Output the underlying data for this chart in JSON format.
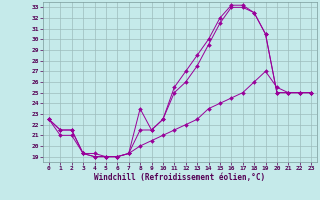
{
  "xlabel": "Windchill (Refroidissement éolien,°C)",
  "background_color": "#c5eaea",
  "line_color": "#990099",
  "xlim": [
    -0.5,
    23.5
  ],
  "ylim": [
    18.5,
    33.5
  ],
  "xticks": [
    0,
    1,
    2,
    3,
    4,
    5,
    6,
    7,
    8,
    9,
    10,
    11,
    12,
    13,
    14,
    15,
    16,
    17,
    18,
    19,
    20,
    21,
    22,
    23
  ],
  "yticks": [
    19,
    20,
    21,
    22,
    23,
    24,
    25,
    26,
    27,
    28,
    29,
    30,
    31,
    32,
    33
  ],
  "grid_color": "#9dbdbd",
  "series": [
    {
      "x": [
        0,
        1,
        2,
        3,
        4,
        5,
        6,
        7,
        8,
        9,
        10,
        11,
        12,
        13,
        14,
        15,
        16,
        17,
        18,
        19,
        20,
        21,
        22,
        23
      ],
      "y": [
        22.5,
        21.5,
        21.5,
        19.3,
        19.0,
        19.0,
        19.0,
        19.3,
        23.5,
        21.5,
        22.5,
        25.5,
        27.0,
        28.5,
        30.0,
        32.0,
        33.2,
        33.2,
        32.5,
        30.5,
        25.0,
        25.0,
        25.0,
        25.0
      ]
    },
    {
      "x": [
        0,
        1,
        2,
        3,
        4,
        5,
        6,
        7,
        8,
        9,
        10,
        11,
        12,
        13,
        14,
        15,
        16,
        17,
        18,
        19,
        20,
        21,
        22,
        23
      ],
      "y": [
        22.5,
        21.5,
        21.5,
        19.3,
        19.0,
        19.0,
        19.0,
        19.3,
        21.5,
        21.5,
        22.5,
        25.0,
        26.0,
        27.5,
        29.5,
        31.5,
        33.0,
        33.0,
        32.5,
        30.5,
        25.0,
        25.0,
        25.0,
        25.0
      ]
    },
    {
      "x": [
        0,
        1,
        2,
        3,
        4,
        5,
        6,
        7,
        8,
        9,
        10,
        11,
        12,
        13,
        14,
        15,
        16,
        17,
        18,
        19,
        20,
        21,
        22,
        23
      ],
      "y": [
        22.5,
        21.0,
        21.0,
        19.3,
        19.3,
        19.0,
        19.0,
        19.3,
        20.0,
        20.5,
        21.0,
        21.5,
        22.0,
        22.5,
        23.5,
        24.0,
        24.5,
        25.0,
        26.0,
        27.0,
        25.5,
        25.0,
        25.0,
        25.0
      ]
    }
  ]
}
